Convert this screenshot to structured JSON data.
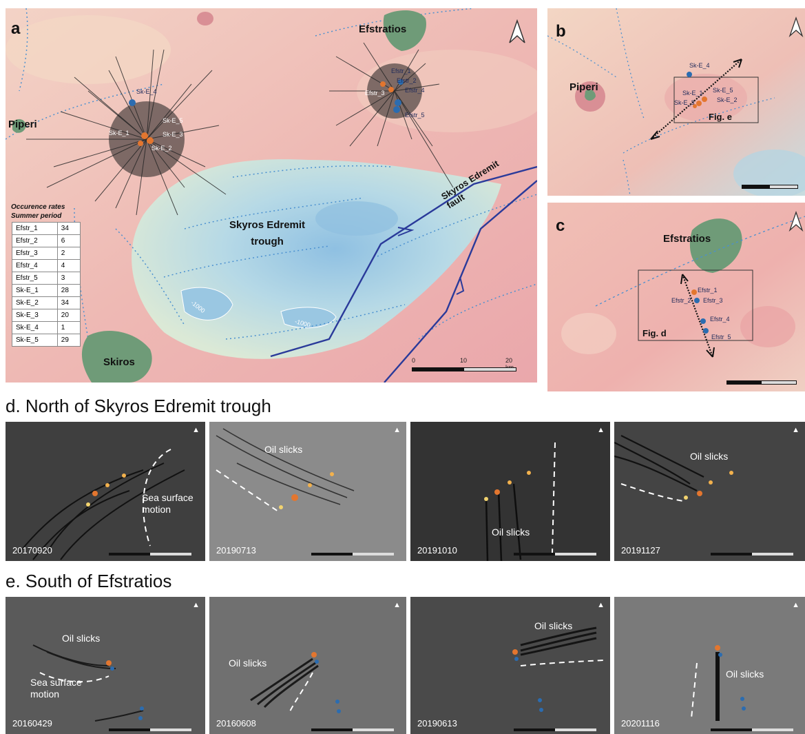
{
  "panels": {
    "a": {
      "label": "a",
      "places": {
        "efstratios": "Efstratios",
        "piperi": "Piperi",
        "skiros": "Skiros",
        "trough": "Skyros Edremit\ntrough",
        "fault": "Skyros Edremit\nfault"
      },
      "contours": [
        "-1000",
        "-1000"
      ],
      "sites_efstratios": [
        "Efstr_1",
        "Efstr_2",
        "Efstr_3",
        "Efstr_4",
        "Efstr_5"
      ],
      "sites_skyros": [
        "Sk-E_1",
        "Sk-E_2",
        "Sk-E_3",
        "Sk-E_4",
        "Sk-E_5"
      ],
      "table": {
        "title_line1": "Occurence rates",
        "title_line2": "Summer period",
        "rows": [
          {
            "site": "Efstr_1",
            "rate": "34"
          },
          {
            "site": "Efstr_2",
            "rate": "6"
          },
          {
            "site": "Efstr_3",
            "rate": "2"
          },
          {
            "site": "Efstr_4",
            "rate": "4"
          },
          {
            "site": "Efstr_5",
            "rate": "3"
          },
          {
            "site": "Sk-E_1",
            "rate": "28"
          },
          {
            "site": "Sk-E_2",
            "rate": "34"
          },
          {
            "site": "Sk-E_3",
            "rate": "20"
          },
          {
            "site": "Sk-E_4",
            "rate": "1"
          },
          {
            "site": "Sk-E_5",
            "rate": "29"
          }
        ]
      },
      "scale": {
        "t0": "0",
        "t1": "10",
        "t2": "20 km"
      }
    },
    "b": {
      "label": "b",
      "place": "Piperi",
      "fig_ref": "Fig. e",
      "sites": [
        "Sk-E_4",
        "Sk-E_1",
        "Sk-E_3",
        "Sk-E_5",
        "Sk-E_2"
      ]
    },
    "c": {
      "label": "c",
      "place": "Efstratios",
      "fig_ref": "Fig. d",
      "sites": [
        "Efstr_1",
        "Efstr_2",
        "Efstr_3",
        "Efstr_4",
        "Efstr_5"
      ]
    }
  },
  "section_d": {
    "title": "d. North of Skyros Edremit trough",
    "images": [
      {
        "date": "20170920",
        "label": "Sea surface\nmotion"
      },
      {
        "date": "20190713",
        "label": "Oil slicks"
      },
      {
        "date": "20191010",
        "label": "Oil slicks"
      },
      {
        "date": "20191127",
        "label": "Oil slicks"
      }
    ]
  },
  "section_e": {
    "title": "e. South of  Efstratios",
    "images": [
      {
        "date": "20160429",
        "label": "Oil slicks",
        "label2": "Sea surface\nmotion"
      },
      {
        "date": "20160608",
        "label": "Oil slicks"
      },
      {
        "date": "20190613",
        "label": "Oil slicks"
      },
      {
        "date": "20201116",
        "label": "Oil slicks"
      }
    ]
  },
  "colors": {
    "land_shallow": "#eeb9b4",
    "deep_water": "#a9d0e6",
    "fault_line": "#2a3a9a",
    "island_green": "#6f9b78",
    "seep_orange": "#e3762f",
    "seep_blue": "#2b6cb0",
    "sar_gray": "#555555"
  }
}
